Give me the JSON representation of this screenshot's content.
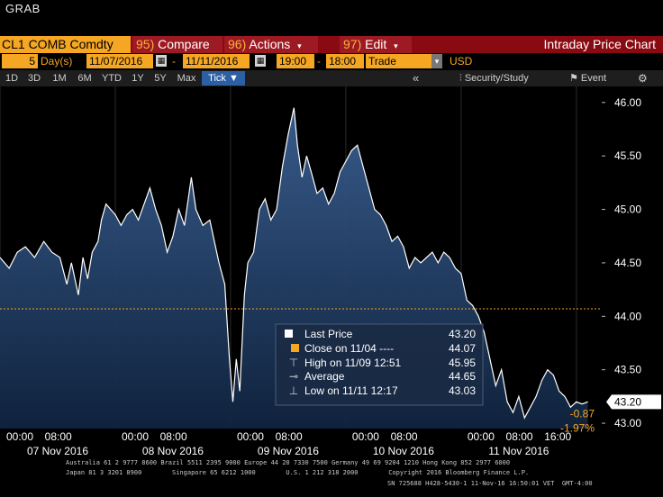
{
  "app": {
    "label": "GRAB"
  },
  "toolbar": {
    "security": "CL1 COMB Comdty",
    "compare": {
      "num": "95)",
      "label": "Compare"
    },
    "actions": {
      "num": "96)",
      "label": "Actions"
    },
    "edit": {
      "num": "97)",
      "label": "Edit"
    },
    "title": "Intraday Price Chart"
  },
  "params": {
    "days_count": "5",
    "days_label": "Day(s)",
    "start_date": "11/07/2016",
    "end_date": "11/11/2016",
    "start_time": "19:00",
    "end_time": "18:00",
    "field": "Trade",
    "currency": "USD"
  },
  "periods": [
    "1D",
    "3D",
    "1M",
    "6M",
    "YTD",
    "1Y",
    "5Y",
    "Max"
  ],
  "selected_period": "Tick",
  "tools": {
    "collapse": "«",
    "security_study": "Security/Study",
    "event": "Event",
    "settings": "⚙"
  },
  "legend": {
    "last_price": {
      "label": "Last Price",
      "value": "43.20"
    },
    "close": {
      "label": "Close on 11/04 ----",
      "value": "44.07"
    },
    "high": {
      "label": "High on 11/09 12:51",
      "value": "45.95"
    },
    "average": {
      "label": "Average",
      "value": "44.65"
    },
    "low": {
      "label": "Low on 11/11 12:17",
      "value": "43.03"
    }
  },
  "last_tag": "43.20",
  "change": {
    "abs": "-0.87",
    "pct": "-1.97%"
  },
  "chart_data": {
    "type": "area",
    "y_ticks": [
      "46.00",
      "45.50",
      "45.00",
      "44.50",
      "44.00",
      "43.50",
      "43.00"
    ],
    "ylim": [
      42.95,
      46.15
    ],
    "xlim": [
      0,
      5.22
    ],
    "x_time_labels": [
      "00:00",
      "08:00",
      "00:00",
      "08:00",
      "00:00",
      "08:00",
      "00:00",
      "08:00",
      "00:00",
      "08:00",
      "16:00"
    ],
    "x_date_labels": [
      "07 Nov 2016",
      "08 Nov 2016",
      "09 Nov 2016",
      "10 Nov 2016",
      "11 Nov 2016"
    ],
    "reference_line": 44.07,
    "x": [
      0,
      0.08,
      0.15,
      0.22,
      0.3,
      0.38,
      0.45,
      0.52,
      0.58,
      0.62,
      0.68,
      0.72,
      0.76,
      0.8,
      0.85,
      0.88,
      0.92,
      0.96,
      1.0,
      1.05,
      1.1,
      1.15,
      1.2,
      1.25,
      1.3,
      1.35,
      1.4,
      1.45,
      1.5,
      1.55,
      1.6,
      1.66,
      1.7,
      1.76,
      1.82,
      1.86,
      1.9,
      1.95,
      1.99,
      2.02,
      2.05,
      2.08,
      2.12,
      2.15,
      2.2,
      2.25,
      2.3,
      2.35,
      2.4,
      2.45,
      2.5,
      2.55,
      2.58,
      2.62,
      2.66,
      2.7,
      2.75,
      2.8,
      2.85,
      2.9,
      2.95,
      3.0,
      3.05,
      3.1,
      3.15,
      3.2,
      3.25,
      3.3,
      3.35,
      3.4,
      3.45,
      3.5,
      3.55,
      3.6,
      3.65,
      3.7,
      3.75,
      3.8,
      3.85,
      3.9,
      3.95,
      4.0,
      4.05,
      4.1,
      4.15,
      4.2,
      4.25,
      4.3,
      4.35,
      4.4,
      4.45,
      4.5,
      4.55,
      4.6,
      4.65,
      4.7,
      4.75,
      4.8,
      4.85,
      4.9,
      4.95,
      5.0,
      5.05,
      5.1
    ],
    "values": [
      44.55,
      44.45,
      44.6,
      44.65,
      44.55,
      44.7,
      44.6,
      44.55,
      44.3,
      44.5,
      44.2,
      44.55,
      44.35,
      44.6,
      44.7,
      44.9,
      45.05,
      45.0,
      44.95,
      44.85,
      44.95,
      45.0,
      44.9,
      45.05,
      45.2,
      45.0,
      44.85,
      44.6,
      44.75,
      45.0,
      44.85,
      45.3,
      45.0,
      44.85,
      44.9,
      44.7,
      44.5,
      44.3,
      43.6,
      43.2,
      43.6,
      43.3,
      44.2,
      44.5,
      44.6,
      45.0,
      45.1,
      44.9,
      45.0,
      45.4,
      45.7,
      45.95,
      45.6,
      45.3,
      45.5,
      45.35,
      45.15,
      45.2,
      45.05,
      45.15,
      45.35,
      45.45,
      45.55,
      45.6,
      45.4,
      45.2,
      45.0,
      44.95,
      44.85,
      44.7,
      44.75,
      44.65,
      44.45,
      44.55,
      44.5,
      44.55,
      44.6,
      44.5,
      44.6,
      44.55,
      44.45,
      44.4,
      44.15,
      44.1,
      44.0,
      43.85,
      43.6,
      43.35,
      43.5,
      43.2,
      43.1,
      43.25,
      43.05,
      43.15,
      43.25,
      43.4,
      43.5,
      43.45,
      43.3,
      43.25,
      43.15,
      43.2,
      43.18,
      43.2
    ]
  },
  "footer": {
    "line1": "Australia 61 2 9777 8600 Brazil 5511 2395 9000 Europe 44 20 7330 7500 Germany 49 69 9204 1210 Hong Kong 852 2977 6000",
    "line2": "Japan 81 3 3201 8900        Singapore 65 6212 1000        U.S. 1 212 318 2000        Copyright 2016 Bloomberg Finance L.P.",
    "line3": "SN 725688 H428-5430-1 11-Nov-16 16:50:01 VET  GMT-4:00"
  }
}
